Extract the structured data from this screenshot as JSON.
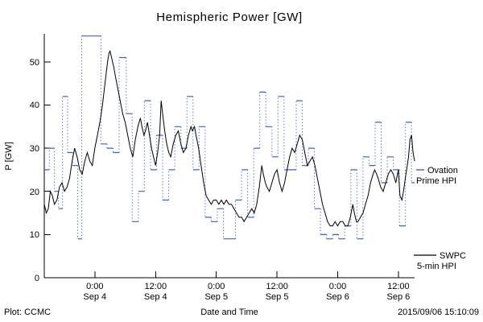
{
  "footer": {
    "left": "Plot: CCMC",
    "right": "2015/09/06 15:10:09"
  },
  "legend": {
    "ovation": {
      "line1": "Ovation",
      "line2": "Prime HPI"
    },
    "swpc": {
      "line1": "SWPC",
      "line2": "5-min HPI"
    }
  },
  "chart_data": {
    "type": "line",
    "title": "Hemispheric Power [GW]",
    "xlabel": "Date and Time",
    "ylabel": "P [GW]",
    "xlim": [
      -10,
      63.2
    ],
    "ylim": [
      0,
      56.5
    ],
    "x_unit": "hours relative to 2015-09-04 00:00",
    "grid": false,
    "legend_position": "right-margin",
    "yticks": [
      "0",
      "10",
      "20",
      "30",
      "40",
      "50"
    ],
    "xticks": [
      {
        "t": 0,
        "time": "0:00",
        "date": "Sep 4"
      },
      {
        "t": 12,
        "time": "12:00",
        "date": "Sep 4"
      },
      {
        "t": 24,
        "time": "0:00",
        "date": "Sep 5"
      },
      {
        "t": 36,
        "time": "12:00",
        "date": "Sep 5"
      },
      {
        "t": 48,
        "time": "0:00",
        "date": "Sep 6"
      },
      {
        "t": 60,
        "time": "12:00",
        "date": "Sep 6"
      }
    ],
    "series": [
      {
        "name": "Ovation Prime HPI",
        "color": "#3b63c4",
        "style": "stepped, dotted verticals",
        "points": [
          [
            -10,
            25
          ],
          [
            -9,
            30
          ],
          [
            -8,
            20
          ],
          [
            -7.2,
            16
          ],
          [
            -6.4,
            42
          ],
          [
            -5.4,
            29
          ],
          [
            -4.4,
            26
          ],
          [
            -3.4,
            9
          ],
          [
            -2.6,
            56
          ],
          [
            1.2,
            31
          ],
          [
            2.4,
            30
          ],
          [
            3.6,
            29
          ],
          [
            4.8,
            51
          ],
          [
            6.2,
            38
          ],
          [
            7.4,
            13
          ],
          [
            8.6,
            20
          ],
          [
            9.8,
            41
          ],
          [
            11,
            25
          ],
          [
            12.2,
            33
          ],
          [
            13.4,
            18
          ],
          [
            14.6,
            25
          ],
          [
            15.8,
            35
          ],
          [
            17,
            30
          ],
          [
            18.2,
            42
          ],
          [
            19.4,
            25
          ],
          [
            20.6,
            35
          ],
          [
            21.8,
            14
          ],
          [
            23,
            13
          ],
          [
            24.2,
            16
          ],
          [
            25.4,
            9
          ],
          [
            26.6,
            9
          ],
          [
            27.8,
            18
          ],
          [
            29,
            25
          ],
          [
            30.2,
            14
          ],
          [
            31.4,
            30
          ],
          [
            32.6,
            43
          ],
          [
            33.8,
            35
          ],
          [
            35,
            28
          ],
          [
            36.2,
            42
          ],
          [
            37.4,
            25
          ],
          [
            38.6,
            25
          ],
          [
            39.8,
            41
          ],
          [
            41,
            26
          ],
          [
            42.2,
            30
          ],
          [
            43.4,
            16
          ],
          [
            44.6,
            10
          ],
          [
            45.8,
            9
          ],
          [
            47,
            10
          ],
          [
            48.2,
            9
          ],
          [
            49.4,
            12
          ],
          [
            50.6,
            25
          ],
          [
            51.8,
            9
          ],
          [
            53,
            28
          ],
          [
            54.2,
            26
          ],
          [
            55.4,
            36
          ],
          [
            56.6,
            22
          ],
          [
            57.8,
            28
          ],
          [
            59,
            25
          ],
          [
            60.2,
            12
          ],
          [
            61.4,
            36
          ],
          [
            62.6,
            22
          ],
          [
            63.2,
            22
          ]
        ]
      },
      {
        "name": "SWPC 5-min HPI",
        "color": "#000000",
        "style": "solid",
        "points": [
          [
            -10,
            17
          ],
          [
            -9.6,
            15
          ],
          [
            -9.2,
            16
          ],
          [
            -8.8,
            20
          ],
          [
            -8.4,
            19
          ],
          [
            -8,
            17
          ],
          [
            -7.5,
            18
          ],
          [
            -7,
            21
          ],
          [
            -6.5,
            22
          ],
          [
            -6,
            20
          ],
          [
            -5.5,
            21
          ],
          [
            -5,
            23
          ],
          [
            -4.5,
            27
          ],
          [
            -4,
            30
          ],
          [
            -3.5,
            28
          ],
          [
            -3,
            25
          ],
          [
            -2.5,
            24
          ],
          [
            -2,
            27
          ],
          [
            -1.5,
            29
          ],
          [
            -1,
            27
          ],
          [
            -0.5,
            26
          ],
          [
            0,
            30
          ],
          [
            0.5,
            33
          ],
          [
            1,
            36
          ],
          [
            1.5,
            40
          ],
          [
            2,
            45
          ],
          [
            2.5,
            50
          ],
          [
            2.8,
            52
          ],
          [
            3,
            52.5
          ],
          [
            3.3,
            51
          ],
          [
            3.7,
            49
          ],
          [
            4,
            47
          ],
          [
            4.5,
            44
          ],
          [
            5,
            41
          ],
          [
            5.5,
            38
          ],
          [
            6,
            36
          ],
          [
            6.5,
            33
          ],
          [
            7,
            30
          ],
          [
            7.5,
            28
          ],
          [
            8,
            32
          ],
          [
            8.5,
            35
          ],
          [
            9,
            37
          ],
          [
            9.3,
            35
          ],
          [
            9.7,
            33
          ],
          [
            10,
            34
          ],
          [
            10.4,
            36
          ],
          [
            10.8,
            33
          ],
          [
            11.2,
            30
          ],
          [
            11.6,
            28
          ],
          [
            12,
            26
          ],
          [
            12.4,
            29
          ],
          [
            12.8,
            33
          ],
          [
            13.1,
            41
          ],
          [
            13.4,
            38
          ],
          [
            13.8,
            34
          ],
          [
            14.2,
            31
          ],
          [
            14.6,
            29
          ],
          [
            15,
            28
          ],
          [
            15.5,
            31
          ],
          [
            16,
            33
          ],
          [
            16.5,
            34
          ],
          [
            17,
            31
          ],
          [
            17.5,
            29
          ],
          [
            18,
            30
          ],
          [
            18.5,
            33
          ],
          [
            19,
            35
          ],
          [
            19.3,
            34
          ],
          [
            19.7,
            35
          ],
          [
            20,
            33
          ],
          [
            20.5,
            30
          ],
          [
            21,
            26
          ],
          [
            21.5,
            22
          ],
          [
            22,
            19
          ],
          [
            22.5,
            18
          ],
          [
            23,
            17
          ],
          [
            23.5,
            18
          ],
          [
            24,
            18
          ],
          [
            24.5,
            17
          ],
          [
            25,
            18
          ],
          [
            25.5,
            17
          ],
          [
            26,
            18
          ],
          [
            26.5,
            17
          ],
          [
            27,
            17
          ],
          [
            27.5,
            16
          ],
          [
            28,
            15
          ],
          [
            28.5,
            14
          ],
          [
            29,
            14
          ],
          [
            29.5,
            13
          ],
          [
            30,
            14
          ],
          [
            30.5,
            15
          ],
          [
            31,
            16
          ],
          [
            31.5,
            15
          ],
          [
            32,
            17
          ],
          [
            32.5,
            21
          ],
          [
            33,
            26
          ],
          [
            33.3,
            24
          ],
          [
            33.7,
            22
          ],
          [
            34,
            21
          ],
          [
            34.5,
            20
          ],
          [
            35,
            22
          ],
          [
            35.5,
            24
          ],
          [
            36,
            25
          ],
          [
            36.5,
            22
          ],
          [
            37,
            20
          ],
          [
            37.5,
            22
          ],
          [
            38,
            25
          ],
          [
            38.5,
            28
          ],
          [
            39,
            30
          ],
          [
            39.5,
            29
          ],
          [
            40,
            31
          ],
          [
            40.5,
            33
          ],
          [
            41,
            32
          ],
          [
            41.5,
            29
          ],
          [
            42,
            26
          ],
          [
            42.5,
            27
          ],
          [
            43,
            28
          ],
          [
            43.5,
            26
          ],
          [
            44,
            23
          ],
          [
            44.5,
            20
          ],
          [
            45,
            17
          ],
          [
            45.5,
            15
          ],
          [
            46,
            13
          ],
          [
            46.5,
            12
          ],
          [
            47,
            12
          ],
          [
            47.5,
            13
          ],
          [
            48,
            12
          ],
          [
            48.5,
            13
          ],
          [
            49,
            13
          ],
          [
            49.5,
            12
          ],
          [
            50,
            12
          ],
          [
            50.5,
            14
          ],
          [
            51,
            17
          ],
          [
            51.3,
            15
          ],
          [
            51.7,
            13
          ],
          [
            52,
            13
          ],
          [
            52.5,
            14
          ],
          [
            53,
            15
          ],
          [
            53.5,
            17
          ],
          [
            54,
            19
          ],
          [
            54.5,
            22
          ],
          [
            55,
            24
          ],
          [
            55.3,
            25
          ],
          [
            55.7,
            24
          ],
          [
            56,
            23
          ],
          [
            56.5,
            21
          ],
          [
            57,
            20
          ],
          [
            57.5,
            22
          ],
          [
            58,
            24
          ],
          [
            58.5,
            25
          ],
          [
            59,
            24
          ],
          [
            59.5,
            22
          ],
          [
            60,
            25
          ],
          [
            60.3,
            19
          ],
          [
            60.7,
            18
          ],
          [
            61,
            20
          ],
          [
            61.5,
            24
          ],
          [
            62,
            28
          ],
          [
            62.3,
            32
          ],
          [
            62.6,
            33
          ],
          [
            62.9,
            29
          ],
          [
            63.2,
            27
          ]
        ]
      }
    ]
  }
}
